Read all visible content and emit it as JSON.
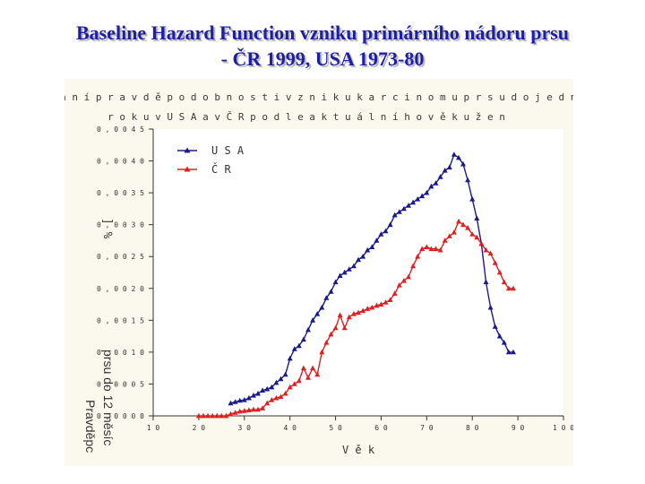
{
  "slide": {
    "title_line1": "Baseline Hazard Function vzniku primárního nádoru prsu",
    "title_line2": "- ČR 1999, USA 1973-80"
  },
  "chart_data": {
    "type": "line",
    "title_line1": "S r o v n á n í p r a v d ě p o d o b n o s t i v z n i k u k a r c i n o m u p r s u d o j e d n o h o",
    "title_line2": "r o k u v U S A a v Č R p o d l e a k t u á l n í h o v ě k u ž e n",
    "xlabel": "V ě k",
    "ylabel_unit": "] %",
    "ylabel_text_1": "prsu do 12 měsíc",
    "ylabel_text_2": "Pravděpc",
    "xlim": [
      10,
      100
    ],
    "ylim": [
      0,
      0.0045
    ],
    "x_ticks": [
      10,
      20,
      30,
      40,
      50,
      60,
      70,
      80,
      90,
      100
    ],
    "x_tick_labels": [
      "1 0",
      "2 0",
      "3 0",
      "4 0",
      "5 0",
      "6 0",
      "7 0",
      "8 0",
      "9 0",
      "1 0 0"
    ],
    "y_ticks": [
      0,
      0.0005,
      0.001,
      0.0015,
      0.002,
      0.0025,
      0.003,
      0.0035,
      0.004,
      0.0045
    ],
    "y_tick_labels": [
      "0 , 0 0 0 0",
      "0 , 0 0 0 5",
      "0 , 0 0 1 0",
      "0 , 0 0 1 5",
      "0 , 0 0 2 0",
      "0 , 0 0 2 5",
      "0 , 0 0 3 0",
      "0 , 0 0 3 5",
      "0 , 0 0 4 0",
      "0 , 0 0 4 5"
    ],
    "legend_position": "top-left",
    "grid": false,
    "series": [
      {
        "name": "U S A",
        "color": "#1a1a8a",
        "x": [
          27,
          28,
          29,
          30,
          31,
          32,
          33,
          34,
          35,
          36,
          37,
          38,
          39,
          40,
          41,
          42,
          43,
          44,
          45,
          46,
          47,
          48,
          49,
          50,
          51,
          52,
          53,
          54,
          55,
          56,
          57,
          58,
          59,
          60,
          61,
          62,
          63,
          64,
          65,
          66,
          67,
          68,
          69,
          70,
          71,
          72,
          73,
          74,
          75,
          76,
          77,
          78,
          79,
          80,
          81,
          82,
          83,
          84,
          85,
          86,
          87,
          88,
          89
        ],
        "values": [
          0.0002,
          0.00022,
          0.00024,
          0.00025,
          0.00028,
          0.00032,
          0.00035,
          0.0004,
          0.00042,
          0.00045,
          0.00052,
          0.00058,
          0.00065,
          0.0009,
          0.00105,
          0.0011,
          0.0012,
          0.00135,
          0.0015,
          0.0016,
          0.0017,
          0.00185,
          0.00195,
          0.0021,
          0.0022,
          0.00225,
          0.0023,
          0.00235,
          0.00245,
          0.0025,
          0.0026,
          0.00265,
          0.00275,
          0.00285,
          0.0029,
          0.003,
          0.00315,
          0.0032,
          0.00325,
          0.0033,
          0.00335,
          0.0034,
          0.00345,
          0.0035,
          0.0036,
          0.00365,
          0.00375,
          0.00385,
          0.0039,
          0.0041,
          0.00405,
          0.00395,
          0.0037,
          0.0034,
          0.0031,
          0.0027,
          0.0021,
          0.0017,
          0.0014,
          0.00125,
          0.00115,
          0.001,
          0.001
        ]
      },
      {
        "name": "Č R",
        "color": "#e02020",
        "x": [
          20,
          21,
          22,
          23,
          24,
          25,
          26,
          27,
          28,
          29,
          30,
          31,
          32,
          33,
          34,
          35,
          36,
          37,
          38,
          39,
          40,
          41,
          42,
          43,
          44,
          45,
          46,
          47,
          48,
          49,
          50,
          51,
          52,
          53,
          54,
          55,
          56,
          57,
          58,
          59,
          60,
          61,
          62,
          63,
          64,
          65,
          66,
          67,
          68,
          69,
          70,
          71,
          72,
          73,
          74,
          75,
          76,
          77,
          78,
          79,
          80,
          81,
          82,
          83,
          84,
          85,
          86,
          87,
          88,
          89
        ],
        "values": [
          0,
          0,
          0,
          0,
          0,
          0,
          0,
          3e-05,
          5e-05,
          7e-05,
          8e-05,
          9e-05,
          0.0001,
          0.0001,
          0.00012,
          0.0002,
          0.00025,
          0.00028,
          0.0003,
          0.00035,
          0.00045,
          0.0005,
          0.00055,
          0.00075,
          0.0006,
          0.00075,
          0.00065,
          0.001,
          0.00115,
          0.00128,
          0.00138,
          0.00158,
          0.00138,
          0.00155,
          0.0016,
          0.00162,
          0.00165,
          0.00168,
          0.0017,
          0.00173,
          0.00175,
          0.00178,
          0.00182,
          0.00192,
          0.00205,
          0.00212,
          0.00218,
          0.00235,
          0.0025,
          0.00262,
          0.00265,
          0.00262,
          0.00262,
          0.0026,
          0.00275,
          0.00282,
          0.00288,
          0.00305,
          0.003,
          0.00295,
          0.00285,
          0.0028,
          0.0027,
          0.0026,
          0.00255,
          0.0024,
          0.00225,
          0.0021,
          0.002,
          0.002
        ]
      }
    ]
  }
}
